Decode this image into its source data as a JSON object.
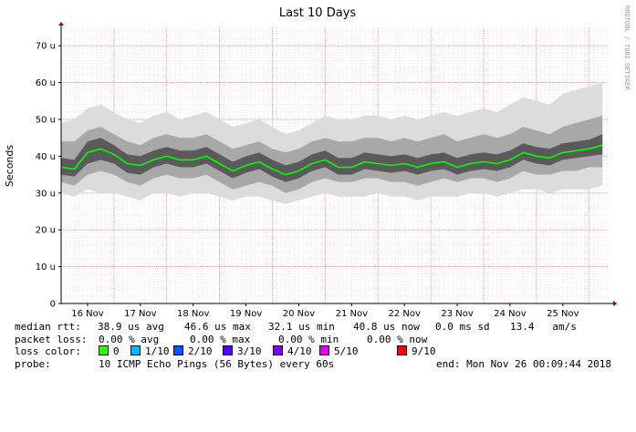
{
  "chart_data": {
    "type": "line",
    "title": "Last 10 Days",
    "ylabel": "Seconds",
    "xlabel": "",
    "watermark": "RRDTOOL / TOBI OETIKER",
    "ylim": [
      0,
      75
    ],
    "yticks": [
      0,
      10,
      20,
      30,
      40,
      50,
      60,
      70
    ],
    "ytick_labels": [
      "0",
      "10 u",
      "20 u",
      "30 u",
      "40 u",
      "50 u",
      "60 u",
      "70 u"
    ],
    "xlim": [
      15.5,
      25.85
    ],
    "xticks": [
      16,
      17,
      18,
      19,
      20,
      21,
      22,
      23,
      24,
      25
    ],
    "xtick_labels": [
      "16 Nov",
      "17 Nov",
      "18 Nov",
      "19 Nov",
      "20 Nov",
      "21 Nov",
      "22 Nov",
      "23 Nov",
      "24 Nov",
      "25 Nov"
    ],
    "grid": true,
    "series": [
      {
        "name": "median rtt",
        "color": "#00ff00",
        "x": [
          15.5,
          15.75,
          16.0,
          16.25,
          16.5,
          16.75,
          17.0,
          17.25,
          17.5,
          17.75,
          18.0,
          18.25,
          18.5,
          18.75,
          19.0,
          19.25,
          19.5,
          19.75,
          20.0,
          20.25,
          20.5,
          20.75,
          21.0,
          21.25,
          21.5,
          21.75,
          22.0,
          22.25,
          22.5,
          22.75,
          23.0,
          23.25,
          23.5,
          23.75,
          24.0,
          24.25,
          24.5,
          24.75,
          25.0,
          25.25,
          25.5,
          25.75
        ],
        "y": [
          37,
          36.5,
          41,
          42,
          40.5,
          38,
          37.5,
          39,
          40,
          39,
          39,
          40,
          38,
          36,
          37.5,
          38.5,
          36.5,
          35,
          36,
          38,
          39,
          37,
          37,
          38.5,
          38,
          37.5,
          38,
          37,
          38,
          38.5,
          37,
          38,
          38.5,
          38,
          39,
          41,
          40,
          39.5,
          41,
          41.5,
          42,
          43
        ]
      }
    ],
    "smoke_envelopes": [
      {
        "shade": "#dcdcdc",
        "lower": [
          30,
          29,
          31,
          30,
          30,
          29,
          28,
          30,
          30,
          29,
          30,
          30,
          29,
          28,
          29,
          29,
          28,
          27,
          28,
          29,
          30,
          29,
          29,
          29,
          30,
          29,
          29,
          28,
          29,
          29,
          29,
          30,
          30,
          29,
          30,
          31,
          31,
          30,
          31,
          31,
          31,
          32
        ],
        "upper": [
          49,
          50,
          53,
          54,
          52,
          50,
          49,
          51,
          52,
          50,
          51,
          52,
          50,
          48,
          49,
          50,
          48,
          46,
          47,
          49,
          51,
          50,
          50,
          51,
          51,
          50,
          51,
          50,
          51,
          52,
          51,
          52,
          53,
          52,
          54,
          56,
          55,
          54,
          57,
          58,
          59,
          60
        ]
      },
      {
        "shade": "#a8a8a8",
        "lower": [
          33,
          32,
          35,
          36,
          35,
          33,
          32,
          34,
          35,
          34,
          34,
          35,
          33,
          31,
          32,
          33,
          32,
          30,
          31,
          33,
          34,
          33,
          33,
          34,
          34,
          33,
          33,
          32,
          33,
          34,
          33,
          34,
          34,
          33,
          34,
          36,
          35,
          35,
          36,
          36,
          37,
          37
        ],
        "upper": [
          44,
          44,
          47,
          48,
          46,
          44,
          43,
          45,
          46,
          45,
          45,
          46,
          44,
          42,
          43,
          44,
          42,
          41,
          42,
          44,
          45,
          44,
          44,
          45,
          45,
          44,
          45,
          44,
          45,
          46,
          44,
          45,
          46,
          45,
          46,
          48,
          47,
          46,
          48,
          49,
          50,
          51
        ]
      },
      {
        "shade": "#5a5a5a",
        "lower": [
          35,
          34.5,
          38,
          39,
          38,
          35.5,
          35,
          37,
          38,
          37,
          37,
          38,
          36,
          34,
          35.5,
          36.5,
          34.5,
          33,
          34,
          36,
          37,
          35,
          35,
          36.5,
          36,
          35.5,
          36,
          35,
          36,
          36.5,
          35,
          36,
          36.5,
          36,
          37,
          39,
          38,
          37.5,
          39,
          39.5,
          40,
          40.5
        ],
        "upper": [
          39.5,
          39,
          44,
          45,
          43,
          40.5,
          40,
          41.5,
          42.5,
          41.5,
          41.5,
          42.5,
          40.5,
          38.5,
          40,
          41,
          39,
          37.5,
          38.5,
          40.5,
          41.5,
          39.5,
          39.5,
          41,
          40.5,
          40,
          40.5,
          39.5,
          40.5,
          41,
          39.5,
          40.5,
          41,
          40.5,
          41.5,
          43.5,
          42.5,
          42,
          43.5,
          44,
          44.5,
          46
        ]
      }
    ]
  },
  "legend": {
    "median_rtt": {
      "label": "median rtt:",
      "avg": "38.9 us avg",
      "max": "46.6 us max",
      "min": "32.1 us min",
      "now": "40.8 us now",
      "sd": "0.0 ms sd",
      "am_s": "13.4   am/s"
    },
    "packet_loss": {
      "label": "packet loss:",
      "avg": "0.00 % avg",
      "max": "0.00 % max",
      "min": "0.00 % min",
      "now": "0.00 % now"
    },
    "loss_color": {
      "label": "loss color:",
      "items": [
        {
          "label": "0",
          "color": "#26ff00"
        },
        {
          "label": "1/10",
          "color": "#00b8ff"
        },
        {
          "label": "2/10",
          "color": "#0059ff"
        },
        {
          "label": "3/10",
          "color": "#5e00ff"
        },
        {
          "label": "4/10",
          "color": "#7e00ff"
        },
        {
          "label": "5/10",
          "color": "#dd00ff"
        },
        {
          "label": "9/10",
          "color": "#ff0000"
        }
      ]
    },
    "probe": {
      "label": "probe:",
      "value": "10 ICMP Echo Pings (56 Bytes) every 60s",
      "end": "end: Mon Nov 26 00:09:44 2018"
    }
  }
}
